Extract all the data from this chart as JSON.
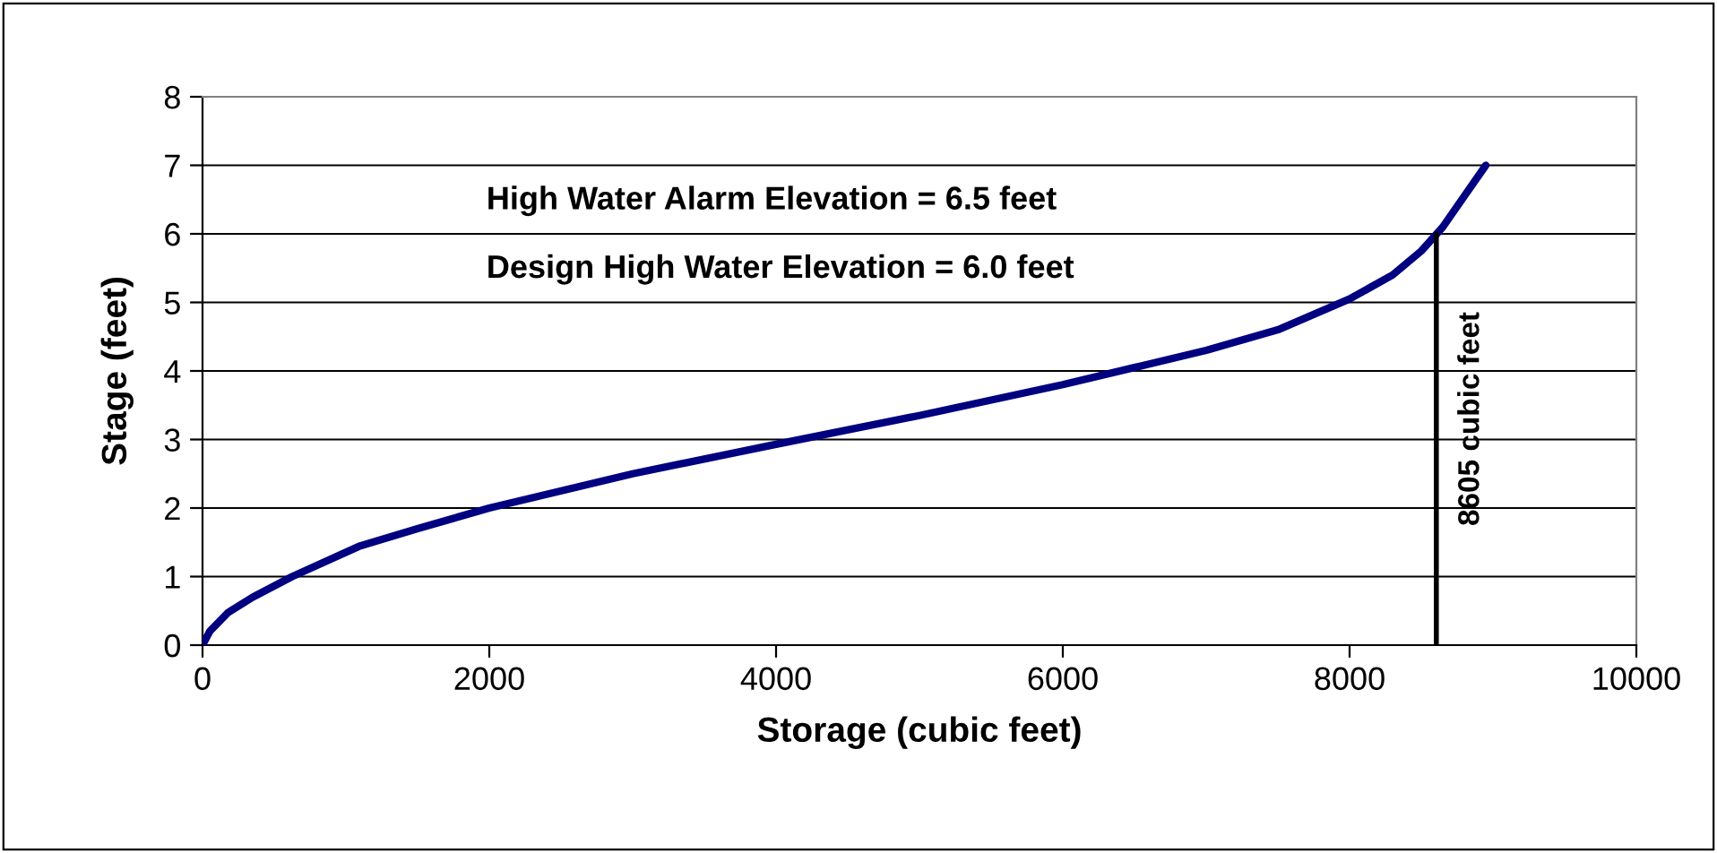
{
  "chart_data": {
    "type": "line",
    "xlabel": "Storage (cubic feet)",
    "ylabel": "Stage (feet)",
    "xlim": [
      0,
      10000
    ],
    "xticks": [
      0,
      2000,
      4000,
      6000,
      8000,
      10000
    ],
    "ylim": [
      0,
      8
    ],
    "yticks": [
      0,
      1,
      2,
      3,
      4,
      5,
      6,
      7,
      8
    ],
    "grid": "y",
    "legend": false,
    "marker": "none",
    "line_style": "solid",
    "series": [
      {
        "color": "#000080",
        "x": [
          0,
          50,
          175,
          350,
          625,
          1090,
          1500,
          2000,
          3000,
          4000,
          5000,
          6000,
          6500,
          7000,
          7500,
          8000,
          8300,
          8500,
          8650,
          8800,
          8950
        ],
        "values": [
          0,
          0.2,
          0.47,
          0.7,
          1.0,
          1.44,
          1.7,
          2.0,
          2.5,
          2.93,
          3.35,
          3.8,
          4.05,
          4.3,
          4.6,
          5.05,
          5.4,
          5.75,
          6.1,
          6.55,
          7.0
        ]
      },
      {
        "color": "#000000",
        "x": [
          8605,
          8605
        ],
        "values": [
          0,
          6
        ]
      }
    ],
    "annotations": [
      "High Water Alarm Elevation = 6.5 feet",
      "Design High Water Elevation = 6.0 feet",
      {
        "text": "8605 cubic feet",
        "x": 8605,
        "y": 3.3
      }
    ]
  }
}
